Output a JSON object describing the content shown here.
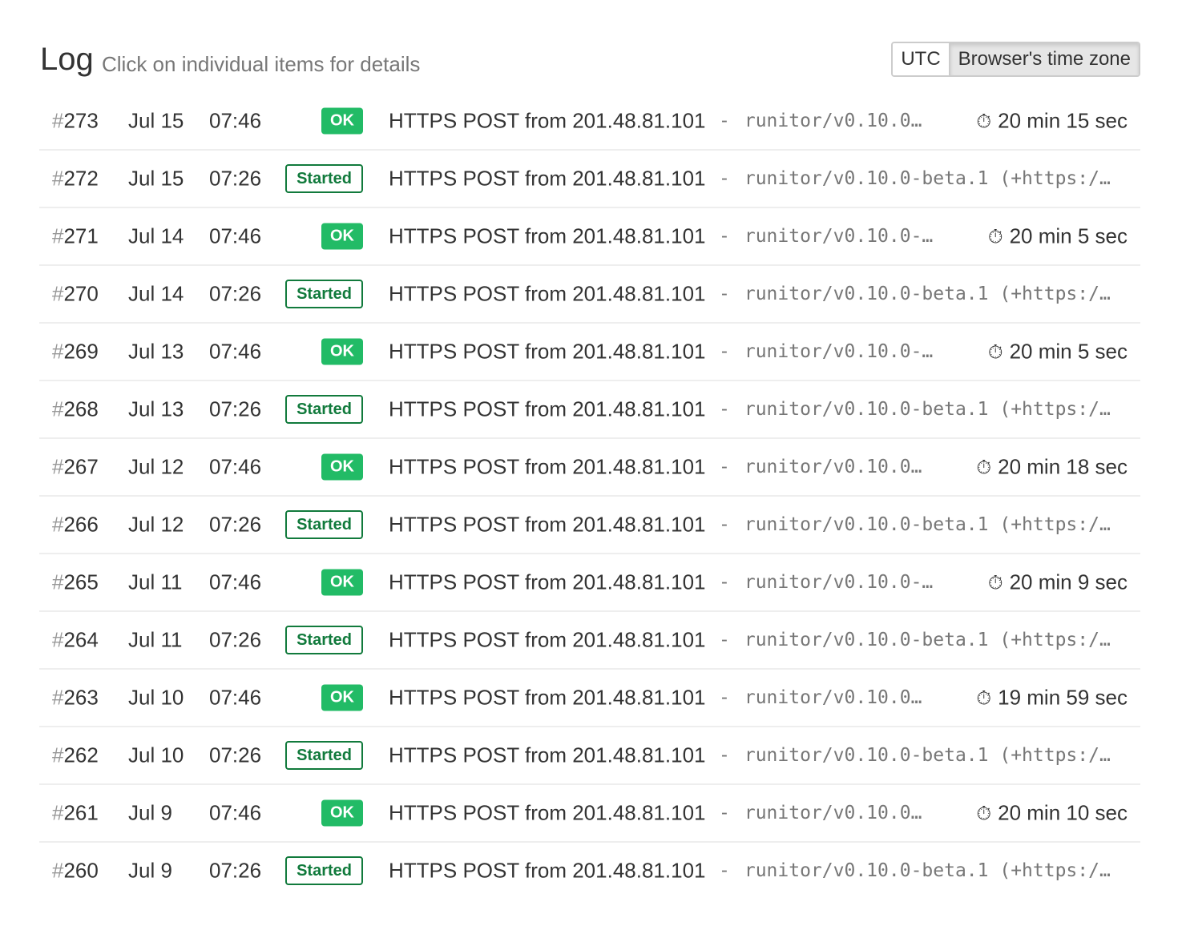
{
  "header": {
    "title": "Log",
    "subtitle": "Click on individual items for details"
  },
  "timezone": {
    "options": [
      "UTC",
      "Browser's time zone"
    ],
    "selected": "Browser's time zone"
  },
  "colors": {
    "ok": "#22bb66",
    "started": "#117a3c"
  },
  "rows": [
    {
      "hash": "#",
      "num": "273",
      "date": "Jul 15",
      "time": "07:46",
      "status": "OK",
      "desc": "HTTPS POST from 201.48.81.101",
      "dash": "-",
      "ua": "runitor/v0.10.0…",
      "duration": "20 min 15 sec",
      "icon": "stopwatch-icon"
    },
    {
      "hash": "#",
      "num": "272",
      "date": "Jul 15",
      "time": "07:26",
      "status": "Started",
      "desc": "HTTPS POST from 201.48.81.101",
      "dash": "-",
      "ua": "runitor/v0.10.0-beta.1 (+https:/…"
    },
    {
      "hash": "#",
      "num": "271",
      "date": "Jul 14",
      "time": "07:46",
      "status": "OK",
      "desc": "HTTPS POST from 201.48.81.101",
      "dash": "-",
      "ua": "runitor/v0.10.0-…",
      "duration": "20 min 5 sec"
    },
    {
      "hash": "#",
      "num": "270",
      "date": "Jul 14",
      "time": "07:26",
      "status": "Started",
      "desc": "HTTPS POST from 201.48.81.101",
      "dash": "-",
      "ua": "runitor/v0.10.0-beta.1 (+https:/…"
    },
    {
      "hash": "#",
      "num": "269",
      "date": "Jul 13",
      "time": "07:46",
      "status": "OK",
      "desc": "HTTPS POST from 201.48.81.101",
      "dash": "-",
      "ua": "runitor/v0.10.0-…",
      "duration": "20 min 5 sec"
    },
    {
      "hash": "#",
      "num": "268",
      "date": "Jul 13",
      "time": "07:26",
      "status": "Started",
      "desc": "HTTPS POST from 201.48.81.101",
      "dash": "-",
      "ua": "runitor/v0.10.0-beta.1 (+https:/…"
    },
    {
      "hash": "#",
      "num": "267",
      "date": "Jul 12",
      "time": "07:46",
      "status": "OK",
      "desc": "HTTPS POST from 201.48.81.101",
      "dash": "-",
      "ua": "runitor/v0.10.0…",
      "duration": "20 min 18 sec"
    },
    {
      "hash": "#",
      "num": "266",
      "date": "Jul 12",
      "time": "07:26",
      "status": "Started",
      "desc": "HTTPS POST from 201.48.81.101",
      "dash": "-",
      "ua": "runitor/v0.10.0-beta.1 (+https:/…"
    },
    {
      "hash": "#",
      "num": "265",
      "date": "Jul 11",
      "time": "07:46",
      "status": "OK",
      "desc": "HTTPS POST from 201.48.81.101",
      "dash": "-",
      "ua": "runitor/v0.10.0-…",
      "duration": "20 min 9 sec"
    },
    {
      "hash": "#",
      "num": "264",
      "date": "Jul 11",
      "time": "07:26",
      "status": "Started",
      "desc": "HTTPS POST from 201.48.81.101",
      "dash": "-",
      "ua": "runitor/v0.10.0-beta.1 (+https:/…"
    },
    {
      "hash": "#",
      "num": "263",
      "date": "Jul 10",
      "time": "07:46",
      "status": "OK",
      "desc": "HTTPS POST from 201.48.81.101",
      "dash": "-",
      "ua": "runitor/v0.10.0…",
      "duration": "19 min 59 sec"
    },
    {
      "hash": "#",
      "num": "262",
      "date": "Jul 10",
      "time": "07:26",
      "status": "Started",
      "desc": "HTTPS POST from 201.48.81.101",
      "dash": "-",
      "ua": "runitor/v0.10.0-beta.1 (+https:/…"
    },
    {
      "hash": "#",
      "num": "261",
      "date": "Jul 9",
      "time": "07:46",
      "status": "OK",
      "desc": "HTTPS POST from 201.48.81.101",
      "dash": "-",
      "ua": "runitor/v0.10.0…",
      "duration": "20 min 10 sec"
    },
    {
      "hash": "#",
      "num": "260",
      "date": "Jul 9",
      "time": "07:26",
      "status": "Started",
      "desc": "HTTPS POST from 201.48.81.101",
      "dash": "-",
      "ua": "runitor/v0.10.0-beta.1 (+https:/…"
    }
  ]
}
